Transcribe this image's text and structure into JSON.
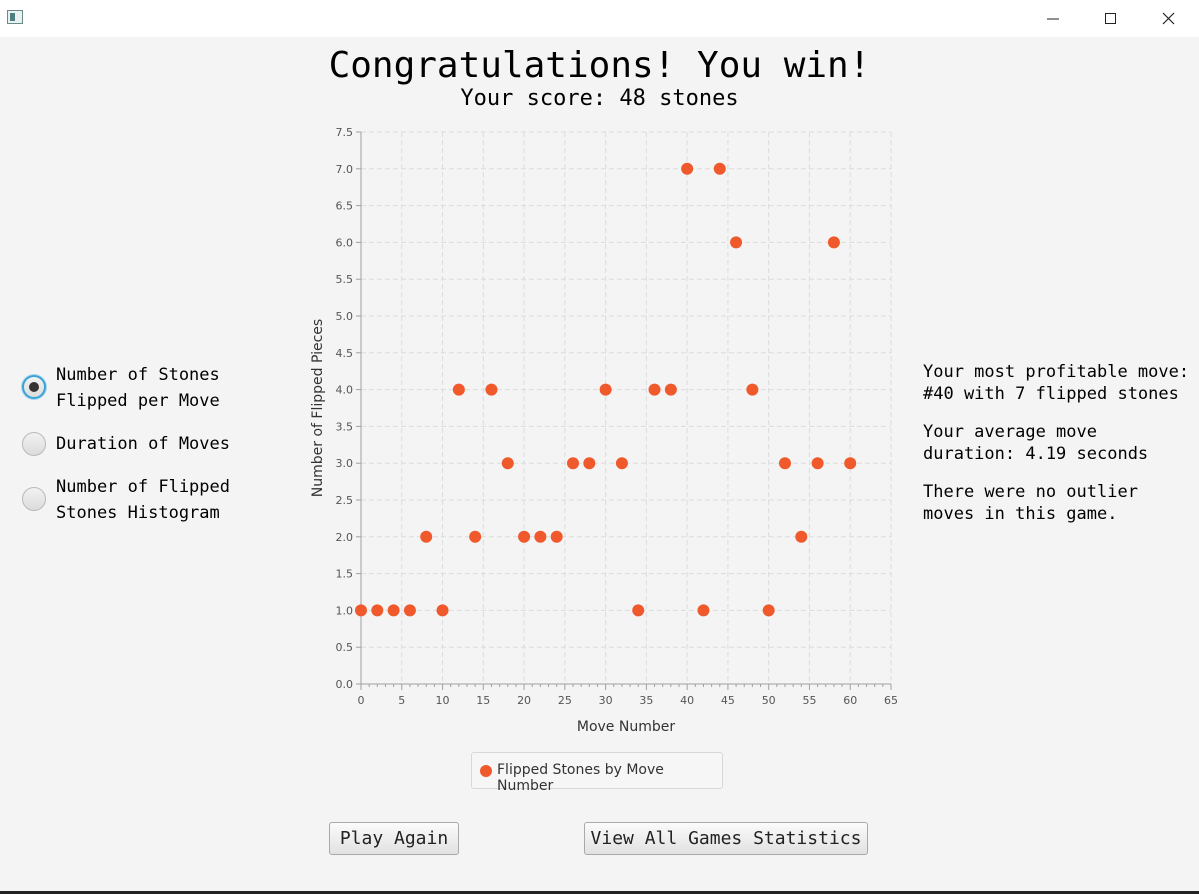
{
  "window": {
    "icons": {
      "app": "app-icon",
      "minimize": "minimize-icon",
      "maximize": "maximize-icon",
      "close": "close-icon"
    }
  },
  "header": {
    "title": "Congratulations! You win!",
    "score": "Your score: 48 stones"
  },
  "sidebar": {
    "options": [
      {
        "label": "Number of Stones\nFlipped per Move",
        "checked": true
      },
      {
        "label": "Duration of Moves",
        "checked": false
      },
      {
        "label": "Number of Flipped\nStones Histogram",
        "checked": false
      }
    ]
  },
  "chart_data": {
    "type": "scatter",
    "xlabel": "Move Number",
    "ylabel": "Number of Flipped Pieces",
    "xlim": [
      0,
      65
    ],
    "ylim": [
      0,
      7.5
    ],
    "x_ticks": [
      "0",
      "5",
      "10",
      "15",
      "20",
      "25",
      "30",
      "35",
      "40",
      "45",
      "50",
      "55",
      "60",
      "65"
    ],
    "y_ticks": [
      "0.0",
      "0.5",
      "1.0",
      "1.5",
      "2.0",
      "2.5",
      "3.0",
      "3.5",
      "4.0",
      "4.5",
      "5.0",
      "5.5",
      "6.0",
      "6.5",
      "7.0",
      "7.5"
    ],
    "grid": true,
    "legend_position": "bottom",
    "color": "#f0592b",
    "series": [
      {
        "name": "Flipped Stones by Move Number",
        "x": [
          0,
          2,
          4,
          6,
          8,
          10,
          12,
          14,
          16,
          18,
          20,
          22,
          24,
          26,
          28,
          30,
          32,
          34,
          36,
          38,
          40,
          42,
          44,
          46,
          48,
          50,
          52,
          54,
          56,
          58,
          60
        ],
        "y": [
          1,
          1,
          1,
          1,
          2,
          1,
          4,
          2,
          4,
          3,
          2,
          2,
          2,
          3,
          3,
          4,
          3,
          1,
          4,
          4,
          7,
          1,
          7,
          6,
          4,
          1,
          3,
          2,
          3,
          6,
          3
        ]
      }
    ]
  },
  "stats": {
    "most_profitable": "Your most profitable move: #40 with 7 flipped stones",
    "average_duration": "Your average move duration: 4.19 seconds",
    "outliers": "There were no outlier moves in this game."
  },
  "buttons": {
    "play_again": "Play Again",
    "view_stats": "View All Games Statistics"
  }
}
